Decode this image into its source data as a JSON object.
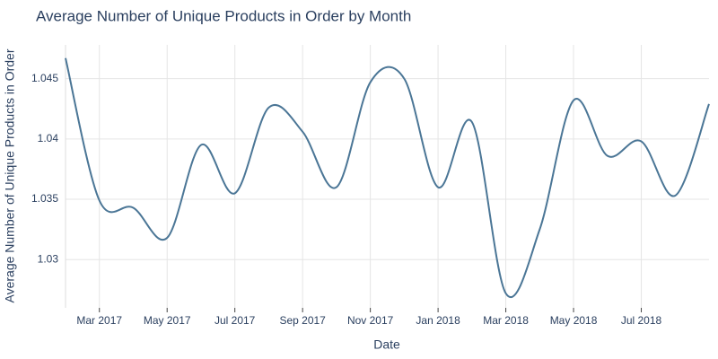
{
  "chart_data": {
    "type": "line",
    "title": "Average Number of Unique Products in Order by Month",
    "x_label": "Date",
    "y_label": "Average Number of Unique Products in Order",
    "x": [
      "2017-02",
      "2017-03",
      "2017-04",
      "2017-05",
      "2017-06",
      "2017-07",
      "2017-08",
      "2017-09",
      "2017-10",
      "2017-11",
      "2017-12",
      "2018-01",
      "2018-02",
      "2018-03",
      "2018-04",
      "2018-05",
      "2018-06",
      "2018-07",
      "2018-08",
      "2018-09"
    ],
    "series": [
      {
        "name": "Average Number of Unique Products in Order",
        "color": "#4b7696",
        "values": [
          1.0467,
          1.0349,
          1.0343,
          1.0318,
          1.0395,
          1.0355,
          1.0426,
          1.0406,
          1.036,
          1.0447,
          1.045,
          1.036,
          1.0414,
          1.0272,
          1.0325,
          1.0432,
          1.0386,
          1.0398,
          1.0353,
          1.0429
        ]
      }
    ],
    "xlim": [
      "2017-02",
      "2018-09"
    ],
    "xticks": [
      {
        "value": "2017-03",
        "label": "Mar 2017"
      },
      {
        "value": "2017-05",
        "label": "May 2017"
      },
      {
        "value": "2017-07",
        "label": "Jul 2017"
      },
      {
        "value": "2017-09",
        "label": "Sep 2017"
      },
      {
        "value": "2017-11",
        "label": "Nov 2017"
      },
      {
        "value": "2018-01",
        "label": "Jan 2018"
      },
      {
        "value": "2018-03",
        "label": "Mar 2018"
      },
      {
        "value": "2018-05",
        "label": "May 2018"
      },
      {
        "value": "2018-07",
        "label": "Jul 2018"
      }
    ],
    "ylim": [
      1.026,
      1.0478
    ],
    "yticks": [
      1.03,
      1.035,
      1.04,
      1.045
    ],
    "grid": true
  }
}
